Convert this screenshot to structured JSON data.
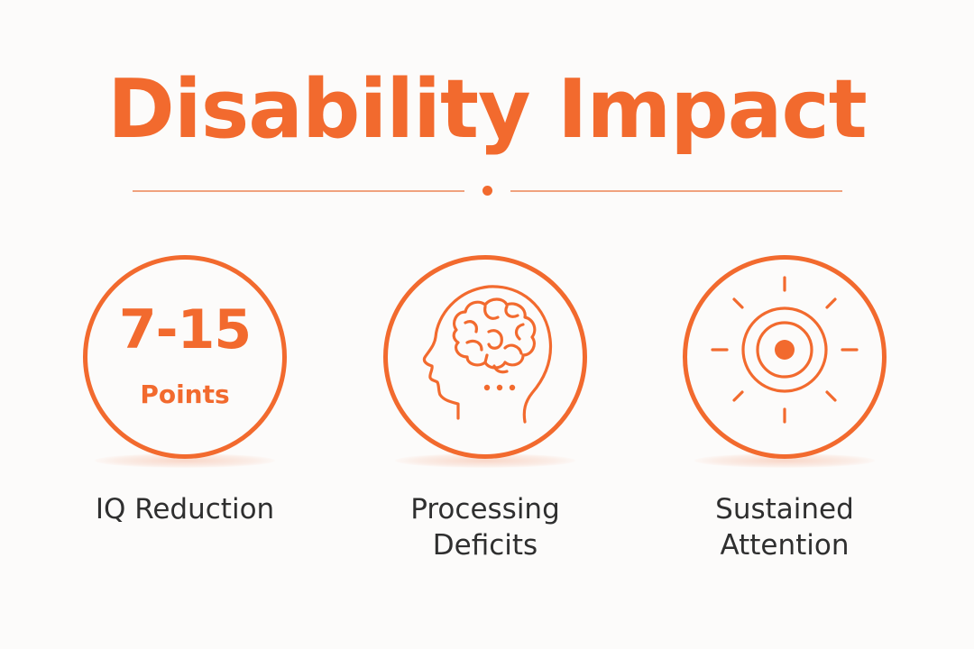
{
  "title": "Disability Impact",
  "colors": {
    "accent": "#f26a2e",
    "divider": "#f0a27e",
    "text": "#2f2f2f"
  },
  "cards": [
    {
      "metric_value": "7-15",
      "metric_unit": "Points",
      "label_lines": [
        "IQ Reduction"
      ]
    },
    {
      "icon": "brain-head-icon",
      "label_lines": [
        "Processing",
        "Deficits"
      ]
    },
    {
      "icon": "target-focus-icon",
      "label_lines": [
        "Sustained",
        "Attention"
      ]
    }
  ]
}
